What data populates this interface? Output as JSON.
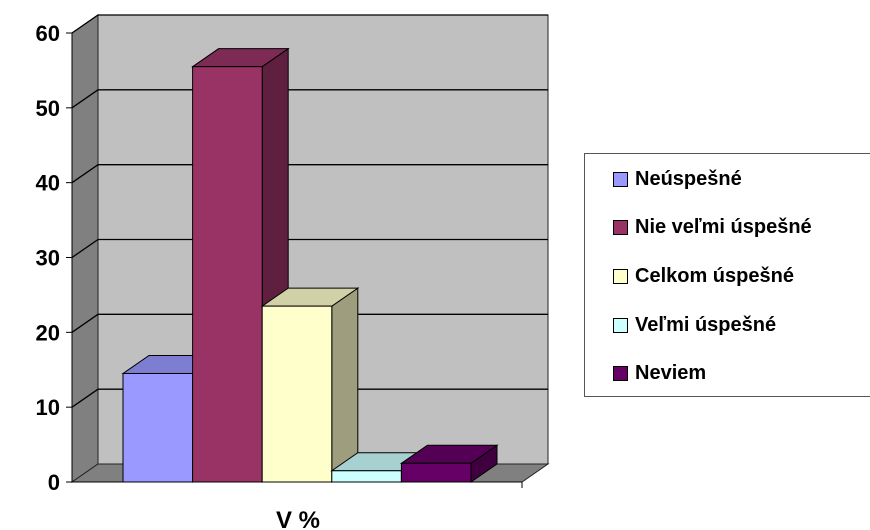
{
  "chart_data": {
    "type": "bar",
    "title": "",
    "xlabel": "V %",
    "ylabel": "",
    "categories": [
      "V %"
    ],
    "ylim": [
      0,
      60
    ],
    "yticks": [
      0,
      10,
      20,
      30,
      40,
      50,
      60
    ],
    "grid": true,
    "legend_position": "right",
    "series": [
      {
        "name": "Neúspešné",
        "values": [
          14.5
        ],
        "color": "#9999FF"
      },
      {
        "name": "Nie veľmi úspešné",
        "values": [
          55.5
        ],
        "color": "#993366"
      },
      {
        "name": "Celkom úspešné",
        "values": [
          23.5
        ],
        "color": "#FFFFCC"
      },
      {
        "name": "Veľmi úspešné",
        "values": [
          1.5
        ],
        "color": "#CCFFFF"
      },
      {
        "name": "Neviem",
        "values": [
          2.5
        ],
        "color": "#660066"
      }
    ]
  }
}
